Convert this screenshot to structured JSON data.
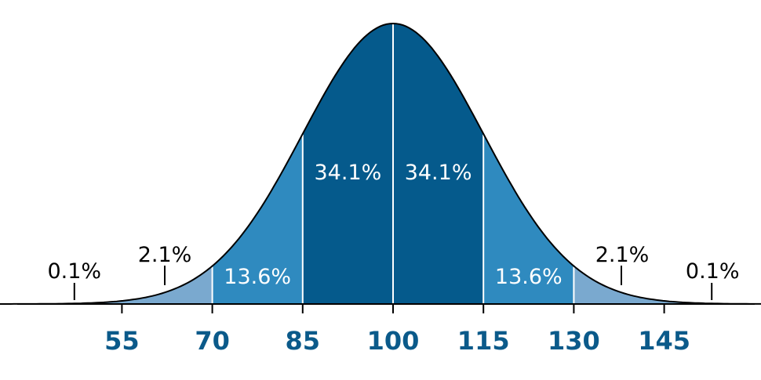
{
  "chart_data": {
    "type": "area",
    "distribution": "normal",
    "mean": 100,
    "sd": 15,
    "x_range": [
      20,
      180
    ],
    "x_ticks": [
      55,
      70,
      85,
      100,
      115,
      130,
      145
    ],
    "x_tick_labels": [
      "55",
      "70",
      "85",
      "100",
      "115",
      "130",
      "145"
    ],
    "region_boundaries": [
      70,
      85,
      100,
      115,
      130
    ],
    "regions": [
      {
        "from": 20,
        "to": 70,
        "color": "#7aa9cf"
      },
      {
        "from": 70,
        "to": 85,
        "color": "#2f8abf"
      },
      {
        "from": 85,
        "to": 100,
        "color": "#055a8c"
      },
      {
        "from": 100,
        "to": 115,
        "color": "#055a8c"
      },
      {
        "from": 115,
        "to": 130,
        "color": "#2f8abf"
      },
      {
        "from": 130,
        "to": 180,
        "color": "#7aa9cf"
      }
    ],
    "segment_labels": [
      {
        "text": "34.1%",
        "x": 92.5,
        "inside": true
      },
      {
        "text": "34.1%",
        "x": 107.5,
        "inside": true
      },
      {
        "text": "13.6%",
        "x": 77.5,
        "inside": true
      },
      {
        "text": "13.6%",
        "x": 122.5,
        "inside": true
      },
      {
        "text": "2.1%",
        "x": 62.5,
        "inside": false
      },
      {
        "text": "2.1%",
        "x": 137.5,
        "inside": false
      },
      {
        "text": "0.1%",
        "x": 47.5,
        "inside": false
      },
      {
        "text": "0.1%",
        "x": 152.5,
        "inside": false
      }
    ],
    "grid": false,
    "title": "",
    "xlabel": "",
    "ylabel": "",
    "colors": {
      "tick_label": "#0b5a8a",
      "outline": "#000000",
      "divider": "#ffffff"
    }
  }
}
